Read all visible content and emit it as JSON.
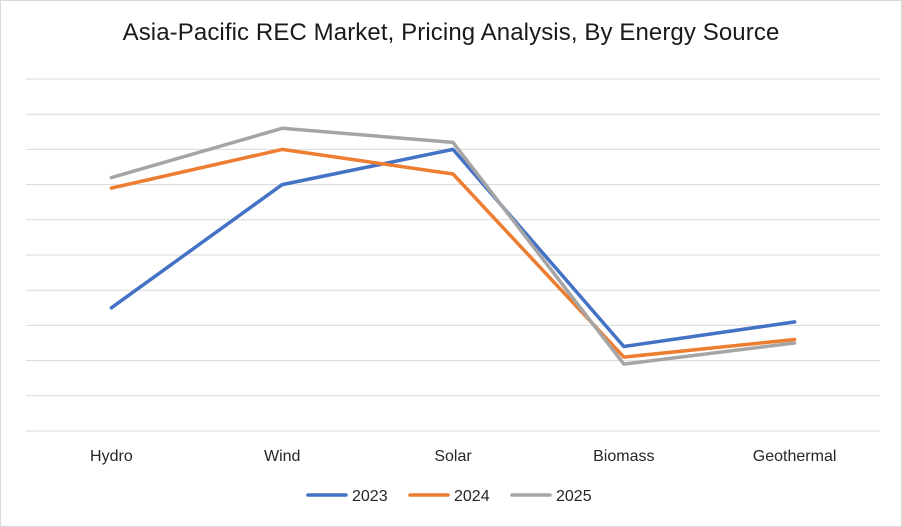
{
  "chart_data": {
    "type": "line",
    "title": "Asia-Pacific REC Market, Pricing Analysis, By Energy Source",
    "xlabel": "",
    "ylabel": "",
    "categories": [
      "Hydro",
      "Wind",
      "Solar",
      "Biomass",
      "Geothermal"
    ],
    "series": [
      {
        "name": "2023",
        "color": "#4472c4",
        "values": [
          3.5,
          7.0,
          8.0,
          2.4,
          3.1
        ]
      },
      {
        "name": "2024",
        "color": "#ed7d31",
        "values": [
          6.9,
          8.0,
          7.3,
          2.1,
          2.6
        ]
      },
      {
        "name": "2025",
        "color": "#a5a5a5",
        "values": [
          7.2,
          8.6,
          8.2,
          1.9,
          2.5
        ]
      }
    ],
    "ylim": [
      0,
      10
    ],
    "grid": true,
    "legend": "bottom"
  }
}
